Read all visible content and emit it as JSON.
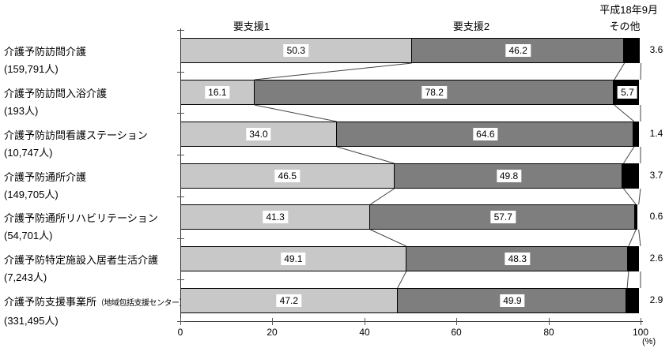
{
  "note": "平成18年9月",
  "headers": {
    "series1": "要支援1",
    "series2": "要支援2",
    "other": "その他"
  },
  "x_axis": {
    "tick_labels": [
      "0",
      "20",
      "40",
      "60",
      "80",
      "100"
    ],
    "unit_label": "(%)"
  },
  "colors": {
    "series1": "#c8c8c8",
    "series2": "#7e7e7e",
    "other": "#000000",
    "connector": "#444444"
  },
  "chart_data": {
    "type": "bar",
    "orientation": "horizontal",
    "stacked": true,
    "note": "平成18年9月",
    "xlabel": "(%)",
    "xlim": [
      0,
      100
    ],
    "x_ticks": [
      0,
      20,
      40,
      60,
      80,
      100
    ],
    "grid": false,
    "legend_position": "column-headers-top",
    "series_names": [
      "要支援1",
      "要支援2",
      "その他"
    ],
    "rows": [
      {
        "category": "介護予防訪問介護",
        "count": "(159,791人)",
        "values": [
          50.3,
          46.2,
          3.6
        ]
      },
      {
        "category": "介護予防訪問入浴介護",
        "count": "(193人)",
        "values": [
          16.1,
          78.2,
          5.7
        ]
      },
      {
        "category": "介護予防訪問看護ステーション",
        "count": "(10,747人)",
        "values": [
          34.0,
          64.6,
          1.4
        ]
      },
      {
        "category": "介護予防通所介護",
        "count": "(149,705人)",
        "values": [
          46.5,
          49.8,
          3.7
        ]
      },
      {
        "category": "介護予防通所リハビリテーション",
        "count": "(54,701人)",
        "values": [
          41.3,
          57.7,
          0.6
        ]
      },
      {
        "category": "介護予防特定施設入居者生活介護",
        "count": "(7,243人)",
        "values": [
          49.1,
          48.3,
          2.6
        ]
      },
      {
        "category": "介護予防支援事業所",
        "category_small": "（地域包括支援センター）",
        "count": "(331,495人)",
        "values": [
          47.2,
          49.9,
          2.9
        ]
      }
    ]
  }
}
